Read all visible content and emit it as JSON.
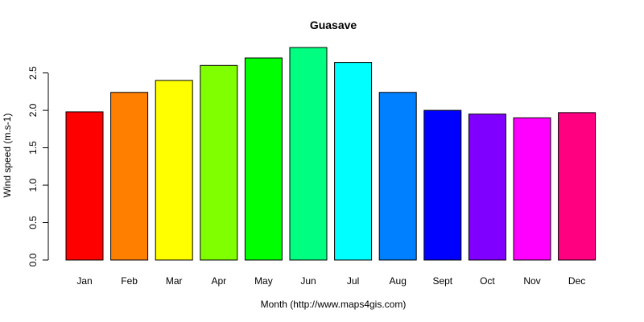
{
  "chart_data": {
    "type": "bar",
    "title": "Guasave",
    "xlabel": "Month (http://www.maps4gis.com)",
    "ylabel": "Wind speed (m.s-1)",
    "categories": [
      "Jan",
      "Feb",
      "Mar",
      "Apr",
      "May",
      "Jun",
      "Jul",
      "Aug",
      "Sept",
      "Oct",
      "Nov",
      "Dec"
    ],
    "values": [
      1.98,
      2.24,
      2.4,
      2.6,
      2.7,
      2.84,
      2.64,
      2.24,
      2.0,
      1.95,
      1.9,
      1.97
    ],
    "colors": [
      "#ff0000",
      "#ff8000",
      "#ffff00",
      "#80ff00",
      "#00ff00",
      "#00ff80",
      "#00ffff",
      "#0080ff",
      "#0000ff",
      "#8000ff",
      "#ff00ff",
      "#ff0080"
    ],
    "ylim": [
      0,
      2.84
    ],
    "yticks": [
      0.0,
      0.5,
      1.0,
      1.5,
      2.0,
      2.5
    ],
    "ytick_labels": [
      "0.0",
      "0.5",
      "1.0",
      "1.5",
      "2.0",
      "2.5"
    ],
    "grid": false,
    "legend": "none"
  }
}
